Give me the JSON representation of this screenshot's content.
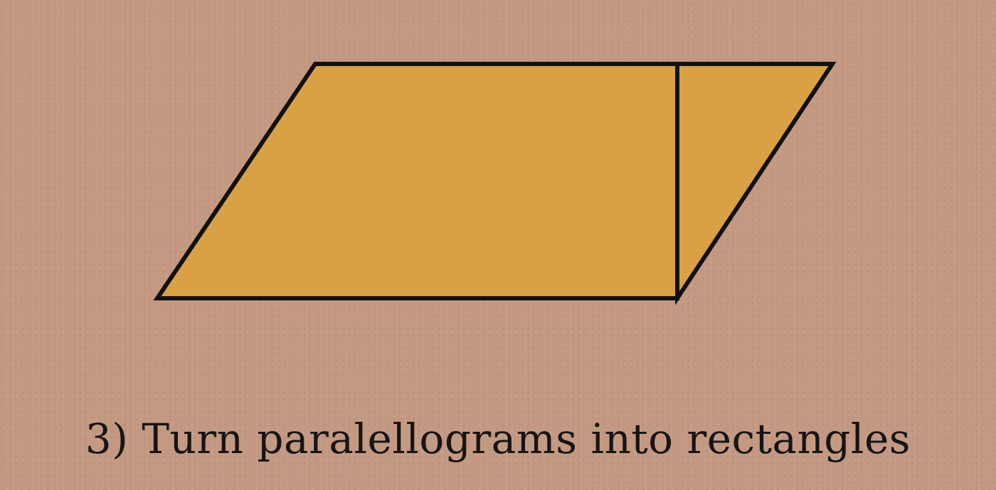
{
  "caption": "3) Turn paralellograms into rectangles",
  "colors": {
    "background": "#c59a82",
    "shape_fill": "#d9a143",
    "outline": "#111111",
    "text": "#151515"
  }
}
